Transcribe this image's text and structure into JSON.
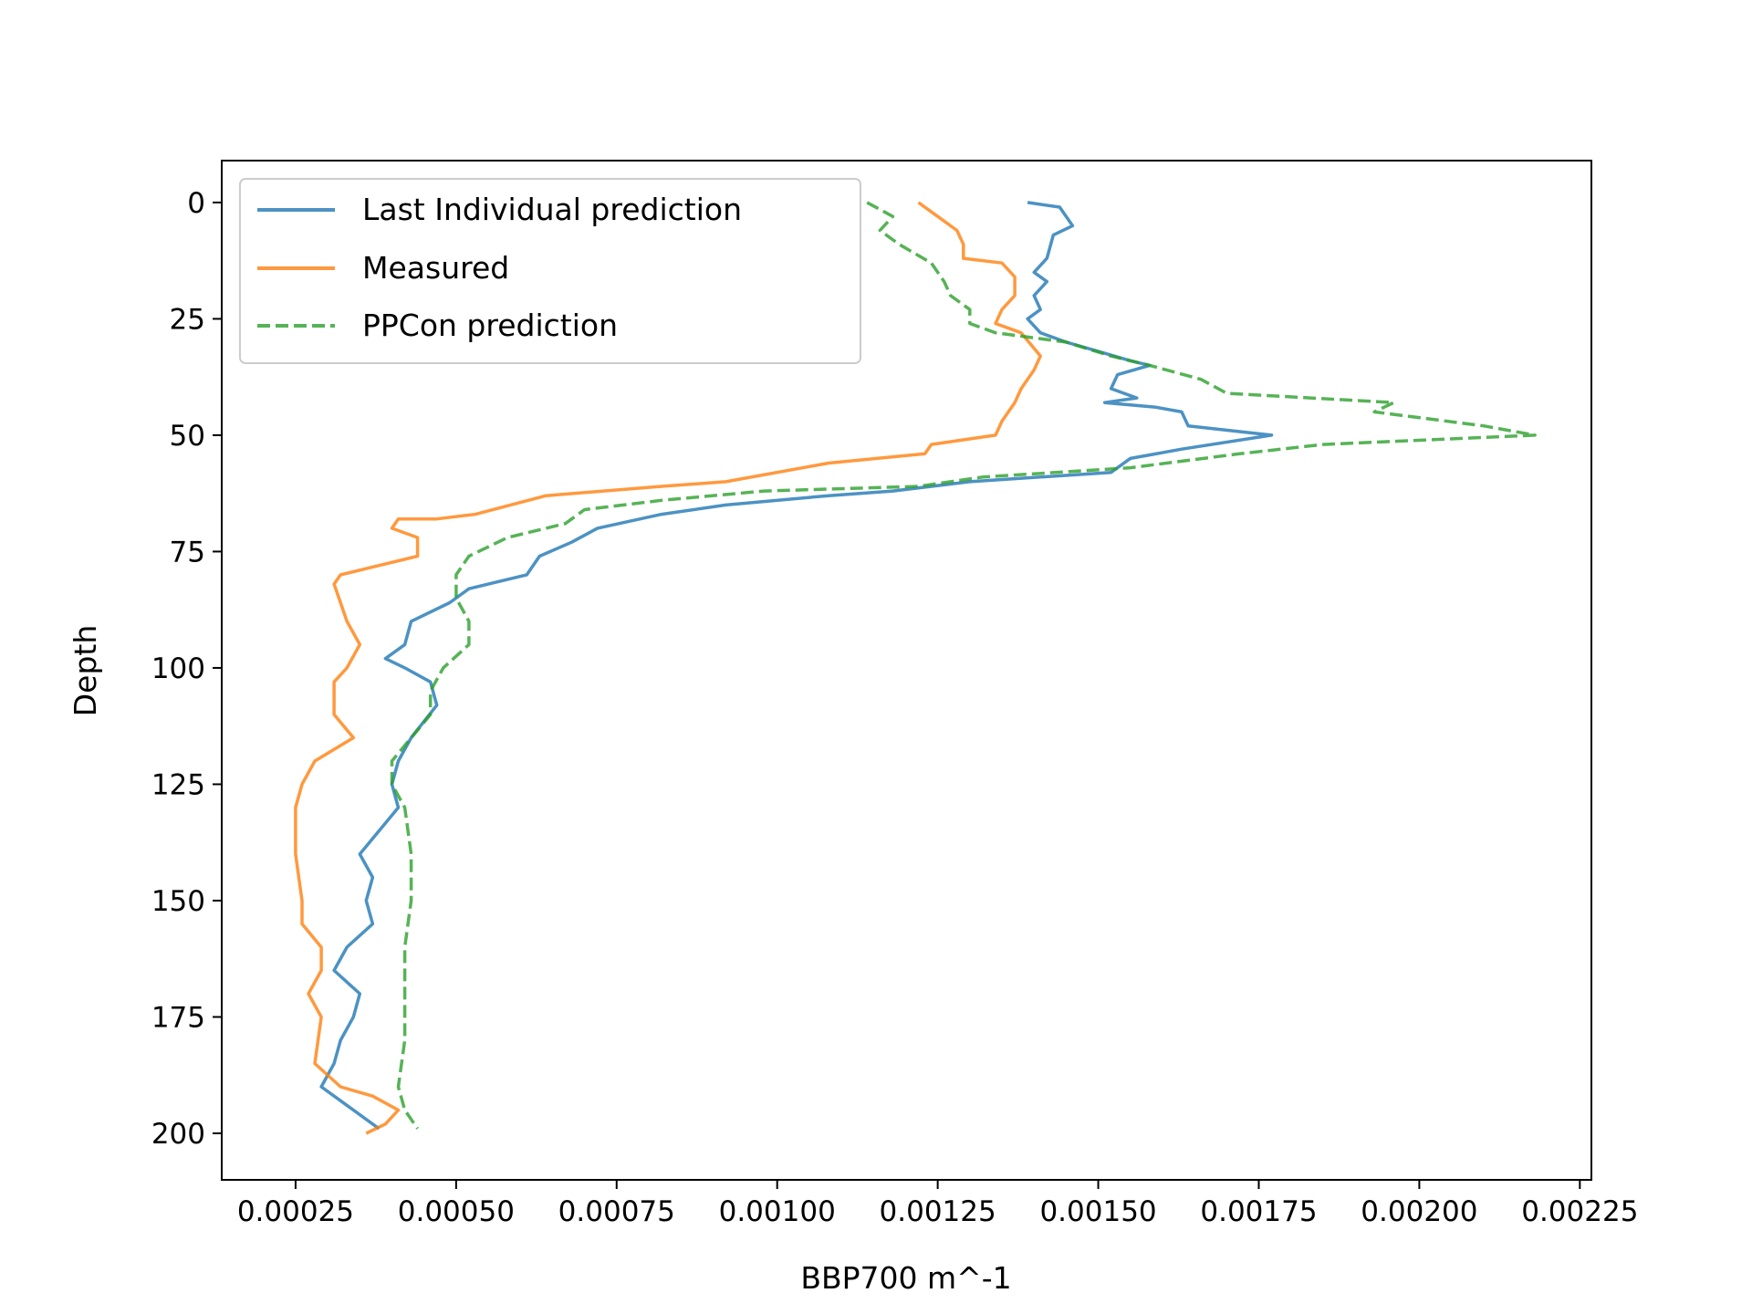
{
  "chart_data": {
    "type": "line",
    "title": "",
    "xlabel": "BBP700 m^-1",
    "ylabel": "Depth",
    "xlim": [
      0.000135,
      0.002268
    ],
    "ylim": [
      210,
      -9
    ],
    "y_inverted": true,
    "grid": false,
    "legend_position": "top-left",
    "x_ticks": [
      {
        "value": 0.00025,
        "label": "0.00025"
      },
      {
        "value": 0.0005,
        "label": "0.00050"
      },
      {
        "value": 0.00075,
        "label": "0.00075"
      },
      {
        "value": 0.001,
        "label": "0.00100"
      },
      {
        "value": 0.00125,
        "label": "0.00125"
      },
      {
        "value": 0.0015,
        "label": "0.00150"
      },
      {
        "value": 0.00175,
        "label": "0.00175"
      },
      {
        "value": 0.002,
        "label": "0.00200"
      },
      {
        "value": 0.00225,
        "label": "0.00225"
      }
    ],
    "y_ticks": [
      {
        "value": 0,
        "label": "0"
      },
      {
        "value": 25,
        "label": "25"
      },
      {
        "value": 50,
        "label": "50"
      },
      {
        "value": 75,
        "label": "75"
      },
      {
        "value": 100,
        "label": "100"
      },
      {
        "value": 125,
        "label": "125"
      },
      {
        "value": 150,
        "label": "150"
      },
      {
        "value": 175,
        "label": "175"
      },
      {
        "value": 200,
        "label": "200"
      }
    ],
    "series": [
      {
        "name": "Last Individual prediction",
        "color": "#1f77b4",
        "style": "solid",
        "points": [
          [
            0.00139,
            0
          ],
          [
            0.00144,
            1
          ],
          [
            0.00146,
            5
          ],
          [
            0.00143,
            7
          ],
          [
            0.00142,
            12
          ],
          [
            0.0014,
            15
          ],
          [
            0.00142,
            17
          ],
          [
            0.0014,
            20
          ],
          [
            0.00141,
            23
          ],
          [
            0.00139,
            25
          ],
          [
            0.00141,
            28
          ],
          [
            0.00145,
            30
          ],
          [
            0.0015,
            32
          ],
          [
            0.00155,
            34
          ],
          [
            0.00158,
            35
          ],
          [
            0.00153,
            37
          ],
          [
            0.00152,
            40
          ],
          [
            0.00156,
            42
          ],
          [
            0.00151,
            43
          ],
          [
            0.00159,
            44
          ],
          [
            0.00163,
            45
          ],
          [
            0.00164,
            48
          ],
          [
            0.00177,
            50
          ],
          [
            0.00163,
            53
          ],
          [
            0.00155,
            55
          ],
          [
            0.00152,
            58
          ],
          [
            0.0013,
            60
          ],
          [
            0.00118,
            62
          ],
          [
            0.00108,
            63
          ],
          [
            0.00092,
            65
          ],
          [
            0.00082,
            67
          ],
          [
            0.00072,
            70
          ],
          [
            0.00068,
            73
          ],
          [
            0.00063,
            76
          ],
          [
            0.00061,
            80
          ],
          [
            0.00052,
            83
          ],
          [
            0.00049,
            86
          ],
          [
            0.00043,
            90
          ],
          [
            0.00042,
            95
          ],
          [
            0.00039,
            98
          ],
          [
            0.00042,
            100
          ],
          [
            0.00046,
            103
          ],
          [
            0.00047,
            108
          ],
          [
            0.00043,
            115
          ],
          [
            0.00041,
            120
          ],
          [
            0.0004,
            125
          ],
          [
            0.00041,
            130
          ],
          [
            0.00038,
            135
          ],
          [
            0.00035,
            140
          ],
          [
            0.00037,
            145
          ],
          [
            0.00036,
            150
          ],
          [
            0.00037,
            155
          ],
          [
            0.00033,
            160
          ],
          [
            0.00031,
            165
          ],
          [
            0.00035,
            170
          ],
          [
            0.00034,
            175
          ],
          [
            0.00032,
            180
          ],
          [
            0.00031,
            185
          ],
          [
            0.00029,
            190
          ],
          [
            0.00034,
            195
          ],
          [
            0.00038,
            199
          ]
        ]
      },
      {
        "name": "Measured",
        "color": "#ff7f0e",
        "style": "solid",
        "points": [
          [
            0.00122,
            0
          ],
          [
            0.00125,
            3
          ],
          [
            0.00128,
            6
          ],
          [
            0.00129,
            9
          ],
          [
            0.00129,
            12
          ],
          [
            0.00135,
            13
          ],
          [
            0.00137,
            16
          ],
          [
            0.00137,
            20
          ],
          [
            0.00135,
            23
          ],
          [
            0.00134,
            26
          ],
          [
            0.00138,
            28
          ],
          [
            0.00141,
            33
          ],
          [
            0.0014,
            36
          ],
          [
            0.00138,
            40
          ],
          [
            0.00137,
            43
          ],
          [
            0.00135,
            47
          ],
          [
            0.00134,
            50
          ],
          [
            0.00124,
            52
          ],
          [
            0.00123,
            54
          ],
          [
            0.00108,
            56
          ],
          [
            0.00092,
            60
          ],
          [
            0.00082,
            61
          ],
          [
            0.00064,
            63
          ],
          [
            0.00053,
            67
          ],
          [
            0.00047,
            68
          ],
          [
            0.00041,
            68
          ],
          [
            0.0004,
            70
          ],
          [
            0.00044,
            72
          ],
          [
            0.00044,
            76
          ],
          [
            0.00038,
            78
          ],
          [
            0.00032,
            80
          ],
          [
            0.00031,
            82
          ],
          [
            0.00032,
            86
          ],
          [
            0.00033,
            90
          ],
          [
            0.00035,
            95
          ],
          [
            0.00033,
            100
          ],
          [
            0.00031,
            103
          ],
          [
            0.00031,
            110
          ],
          [
            0.00034,
            115
          ],
          [
            0.00028,
            120
          ],
          [
            0.00026,
            125
          ],
          [
            0.00025,
            130
          ],
          [
            0.00025,
            140
          ],
          [
            0.00026,
            150
          ],
          [
            0.00026,
            155
          ],
          [
            0.00029,
            160
          ],
          [
            0.00029,
            165
          ],
          [
            0.00027,
            170
          ],
          [
            0.00029,
            175
          ],
          [
            0.00028,
            185
          ],
          [
            0.00032,
            190
          ],
          [
            0.00037,
            192
          ],
          [
            0.00041,
            195
          ],
          [
            0.00039,
            198
          ],
          [
            0.00036,
            200
          ]
        ]
      },
      {
        "name": "PPCon prediction",
        "color": "#2ca02c",
        "style": "dashed",
        "points": [
          [
            0.00114,
            0
          ],
          [
            0.00118,
            3
          ],
          [
            0.00116,
            6
          ],
          [
            0.00119,
            9
          ],
          [
            0.00124,
            13
          ],
          [
            0.00126,
            17
          ],
          [
            0.00127,
            20
          ],
          [
            0.0013,
            23
          ],
          [
            0.0013,
            26
          ],
          [
            0.00134,
            28
          ],
          [
            0.00145,
            30
          ],
          [
            0.00152,
            33
          ],
          [
            0.00158,
            35
          ],
          [
            0.00166,
            38
          ],
          [
            0.0017,
            41
          ],
          [
            0.00196,
            43
          ],
          [
            0.00193,
            45
          ],
          [
            0.0021,
            48
          ],
          [
            0.00218,
            50
          ],
          [
            0.00185,
            52
          ],
          [
            0.00172,
            54
          ],
          [
            0.00155,
            57
          ],
          [
            0.00132,
            59
          ],
          [
            0.00122,
            61
          ],
          [
            0.00098,
            62
          ],
          [
            0.00082,
            64
          ],
          [
            0.0007,
            66
          ],
          [
            0.00067,
            69
          ],
          [
            0.00058,
            72
          ],
          [
            0.00052,
            76
          ],
          [
            0.0005,
            80
          ],
          [
            0.0005,
            85
          ],
          [
            0.00052,
            90
          ],
          [
            0.00052,
            95
          ],
          [
            0.00048,
            100
          ],
          [
            0.00046,
            105
          ],
          [
            0.00046,
            110
          ],
          [
            0.00043,
            115
          ],
          [
            0.0004,
            120
          ],
          [
            0.0004,
            125
          ],
          [
            0.00042,
            130
          ],
          [
            0.00043,
            140
          ],
          [
            0.00043,
            150
          ],
          [
            0.00042,
            160
          ],
          [
            0.00042,
            170
          ],
          [
            0.00042,
            180
          ],
          [
            0.00041,
            190
          ],
          [
            0.00042,
            195
          ],
          [
            0.00044,
            199
          ]
        ]
      }
    ]
  }
}
